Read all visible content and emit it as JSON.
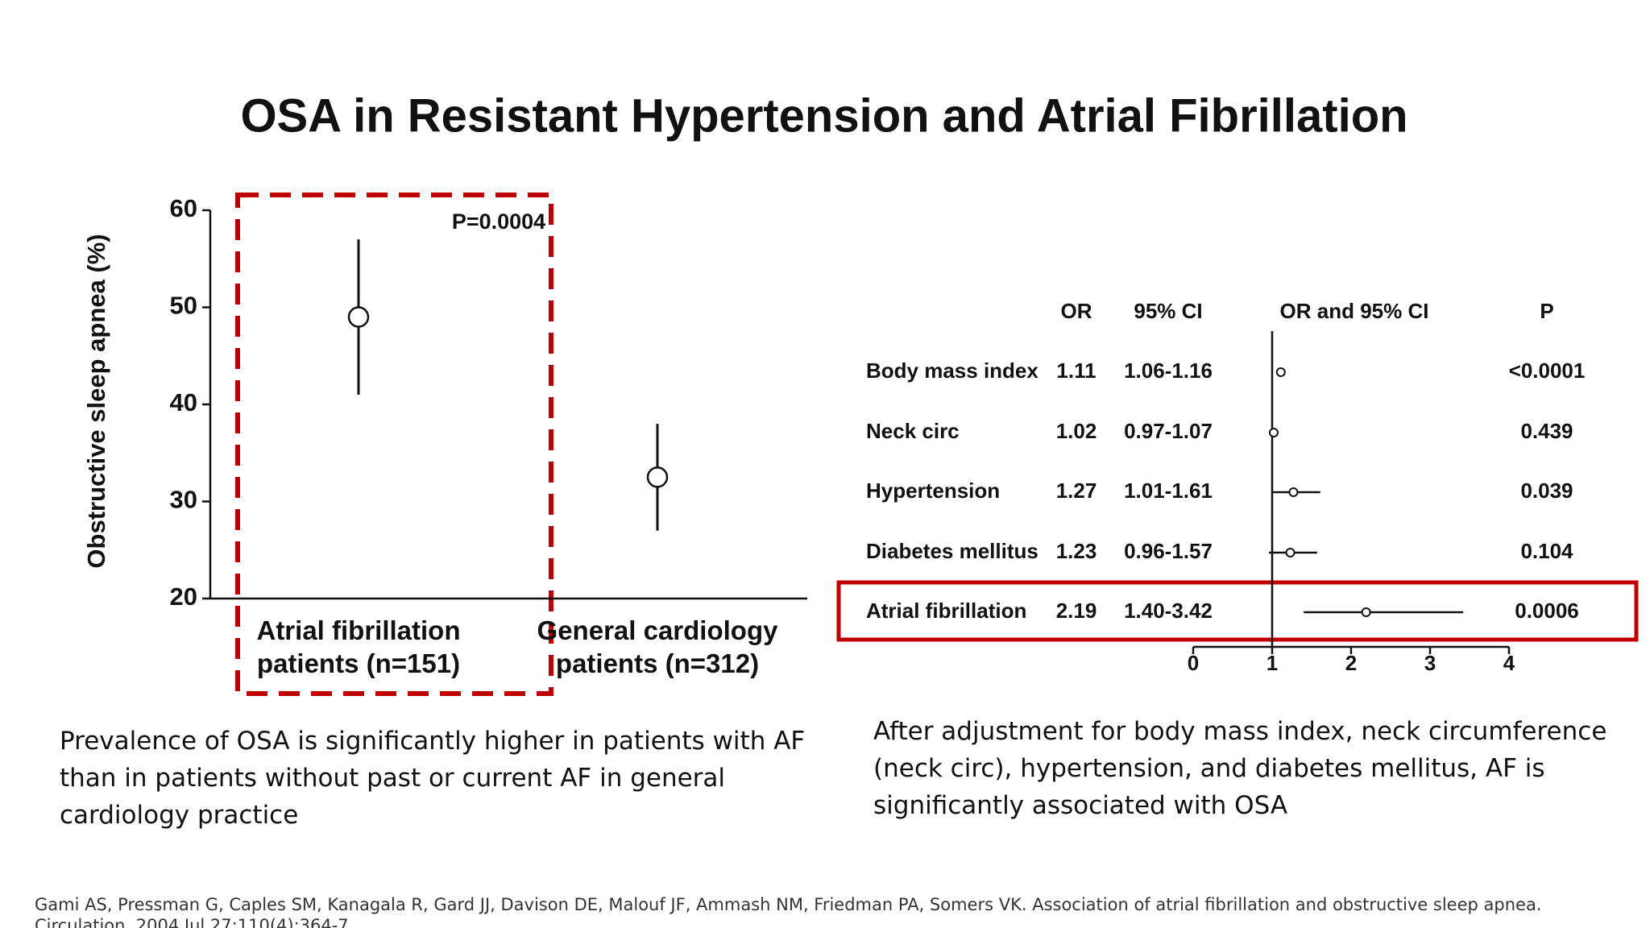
{
  "title": "OSA in Resistant Hypertension and Atrial Fibrillation",
  "captions": [
    "Prevalence of OSA is significantly higher in patients with AF than in patients without past or current AF in general cardiology practice",
    "After adjustment for body mass index, neck circumference (neck circ), hypertension, and diabetes mellitus, AF is significantly associated with OSA"
  ],
  "citation": "Gami AS, Pressman G, Caples SM, Kanagala R, Gard JJ, Davison DE, Malouf JF, Ammash NM, Friedman PA, Somers VK. Association of atrial fibrillation and obstructive sleep apnea. Circulation. 2004 Jul 27;110(4):364-7",
  "chart_data": [
    {
      "type": "errorbar",
      "ylabel": "Obstructive sleep apnea (%)",
      "annotation": "P=0.0004",
      "categories": [
        "Atrial fibrillation patients (n=151)",
        "General cardiology patients (n=312)"
      ],
      "values": [
        49,
        32.5
      ],
      "errors": [
        8,
        5.5
      ],
      "ylim": [
        20,
        60
      ],
      "yticks": [
        20,
        30,
        40,
        50,
        60
      ]
    },
    {
      "type": "forest",
      "columns": [
        "OR",
        "95% CI",
        "OR and 95% CI",
        "P"
      ],
      "categories": [
        "Body mass index",
        "Neck circ",
        "Hypertension",
        "Diabetes mellitus",
        "Atrial fibrillation"
      ],
      "values": [
        1.11,
        1.02,
        1.27,
        1.23,
        2.19
      ],
      "ci_low": [
        1.06,
        0.97,
        1.01,
        0.96,
        1.4
      ],
      "ci_high": [
        1.16,
        1.07,
        1.61,
        1.57,
        3.42
      ],
      "ci_labels": [
        "1.06-1.16",
        "0.97-1.07",
        "1.01-1.61",
        "0.96-1.57",
        "1.40-3.42"
      ],
      "p_labels": [
        "<0.0001",
        "0.439",
        "0.039",
        "0.104",
        "0.0006"
      ],
      "reference": 1,
      "xlim": [
        0,
        4
      ],
      "xticks": [
        0,
        1,
        2,
        3,
        4
      ]
    }
  ]
}
